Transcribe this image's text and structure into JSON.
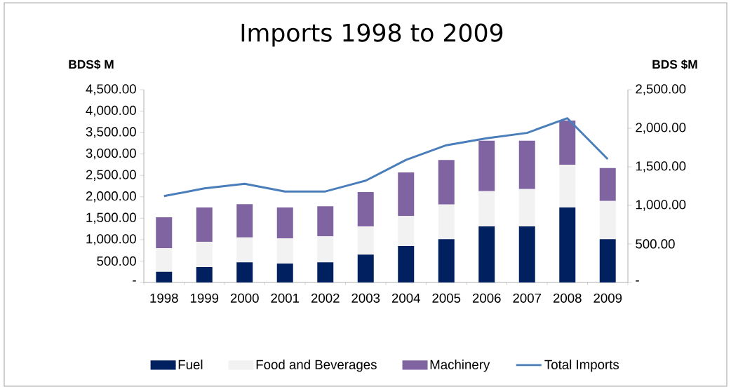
{
  "chart_data": {
    "type": "bar",
    "title": "Imports 1998 to 2009",
    "ylabel": "BDS$ M",
    "y2label": "BDS $M",
    "categories": [
      "1998",
      "1999",
      "2000",
      "2001",
      "2002",
      "2003",
      "2004",
      "2005",
      "2006",
      "2007",
      "2008",
      "2009"
    ],
    "stacked": true,
    "legend": "bottom",
    "series": [
      {
        "name": "Fuel",
        "color": "#002060",
        "values": [
          250,
          360,
          470,
          440,
          470,
          650,
          850,
          1010,
          1310,
          1310,
          1750,
          1010
        ]
      },
      {
        "name": "Food and Beverages",
        "color": "#f2f2f2",
        "values": [
          550,
          590,
          580,
          590,
          610,
          660,
          700,
          810,
          820,
          870,
          1000,
          890
        ]
      },
      {
        "name": "Machinery",
        "color": "#8064a2",
        "values": [
          720,
          800,
          780,
          720,
          700,
          800,
          1020,
          1040,
          1180,
          1130,
          1030,
          770
        ]
      },
      {
        "name": "Total Imports",
        "type": "line",
        "axis": "y2",
        "color": "#4a7ebb",
        "values": [
          1120,
          1220,
          1280,
          1180,
          1180,
          1320,
          1590,
          1780,
          1870,
          1940,
          2130,
          1600
        ]
      }
    ],
    "ylim": [
      0,
      4500
    ],
    "yticks": [
      {
        "value": 0,
        "label": "-"
      },
      {
        "value": 500,
        "label": "500.00"
      },
      {
        "value": 1000,
        "label": "1,000.00"
      },
      {
        "value": 1500,
        "label": "1,500.00"
      },
      {
        "value": 2000,
        "label": "2,000.00"
      },
      {
        "value": 2500,
        "label": "2,500.00"
      },
      {
        "value": 3000,
        "label": "3,000.00"
      },
      {
        "value": 3500,
        "label": "3,500.00"
      },
      {
        "value": 4000,
        "label": "4,000.00"
      },
      {
        "value": 4500,
        "label": "4,500.00"
      }
    ],
    "y2lim": [
      0,
      2500
    ],
    "y2ticks": [
      {
        "value": 0,
        "label": "-"
      },
      {
        "value": 500,
        "label": "500.00"
      },
      {
        "value": 1000,
        "label": "1,000.00"
      },
      {
        "value": 1500,
        "label": "1,500.00"
      },
      {
        "value": 2000,
        "label": "2,000.00"
      },
      {
        "value": 2500,
        "label": "2,500.00"
      }
    ]
  }
}
